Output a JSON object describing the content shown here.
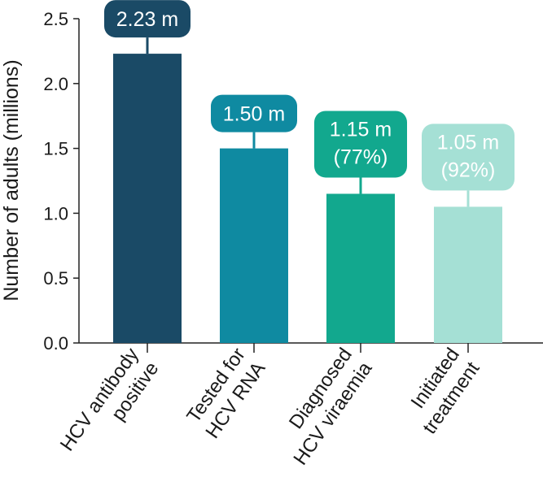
{
  "chart_data": {
    "type": "bar",
    "categories": [
      [
        "HCV antibody",
        "positive"
      ],
      [
        "Tested for",
        "HCV RNA"
      ],
      [
        "Diagnosed",
        "HCV viraemia"
      ],
      [
        "Initiated",
        "treatment"
      ]
    ],
    "values": [
      2.23,
      1.5,
      1.15,
      1.05
    ],
    "data_labels": [
      [
        "2.23 m"
      ],
      [
        "1.50 m"
      ],
      [
        "1.15 m",
        "(77%)"
      ],
      [
        "1.05 m",
        "(92%)"
      ]
    ],
    "colors": [
      "#1a4a66",
      "#0f8aa1",
      "#12a88e",
      "#a5e0d5"
    ],
    "label_text_colors": [
      "#ffffff",
      "#ffffff",
      "#ffffff",
      "#ffffff"
    ],
    "ylabel": "Number of adults (millions)",
    "xlabel": "",
    "title": "",
    "ylim": [
      0,
      2.5
    ],
    "yticks": [
      "0.0",
      "0.5",
      "1.0",
      "1.5",
      "2.0",
      "2.5"
    ],
    "grid": false,
    "legend": "none"
  }
}
